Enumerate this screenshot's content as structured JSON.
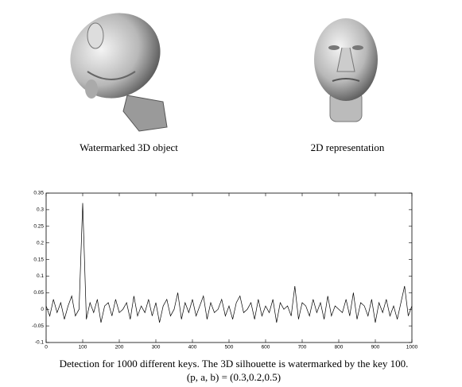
{
  "images": [
    {
      "caption": "Watermarked 3D object"
    },
    {
      "caption": "2D representation"
    }
  ],
  "caption": [
    "Detection for 1000 different keys. The 3D silhouette is watermarked by the key 100.",
    "(p, a, b) = (0.3,0.2,0.5)"
  ],
  "chart_data": {
    "type": "line",
    "color": "#000000",
    "x": [
      0,
      10,
      20,
      30,
      40,
      50,
      60,
      70,
      80,
      90,
      100,
      110,
      120,
      130,
      140,
      150,
      160,
      170,
      180,
      190,
      200,
      210,
      220,
      230,
      240,
      250,
      260,
      270,
      280,
      290,
      300,
      310,
      320,
      330,
      340,
      350,
      360,
      370,
      380,
      390,
      400,
      410,
      420,
      430,
      440,
      450,
      460,
      470,
      480,
      490,
      500,
      510,
      520,
      530,
      540,
      550,
      560,
      570,
      580,
      590,
      600,
      610,
      620,
      630,
      640,
      650,
      660,
      670,
      680,
      690,
      700,
      710,
      720,
      730,
      740,
      750,
      760,
      770,
      780,
      790,
      800,
      810,
      820,
      830,
      840,
      850,
      860,
      870,
      880,
      890,
      900,
      910,
      920,
      930,
      940,
      950,
      960,
      970,
      980,
      990,
      1000
    ],
    "values": [
      0.01,
      -0.02,
      0.03,
      -0.01,
      0.02,
      -0.03,
      0.01,
      0.04,
      -0.02,
      0.0,
      0.32,
      -0.03,
      0.02,
      -0.01,
      0.03,
      -0.04,
      0.01,
      0.02,
      -0.02,
      0.03,
      -0.01,
      0.0,
      0.02,
      -0.03,
      0.04,
      -0.02,
      0.01,
      -0.01,
      0.03,
      -0.02,
      0.02,
      -0.04,
      0.01,
      0.03,
      -0.02,
      0.0,
      0.05,
      -0.03,
      0.02,
      -0.01,
      0.03,
      -0.02,
      0.01,
      0.04,
      -0.03,
      0.02,
      -0.01,
      0.0,
      0.03,
      -0.02,
      0.01,
      -0.03,
      0.02,
      0.04,
      -0.01,
      0.0,
      0.02,
      -0.03,
      0.03,
      -0.02,
      0.01,
      -0.01,
      0.03,
      -0.04,
      0.02,
      0.0,
      0.01,
      -0.02,
      0.07,
      -0.03,
      0.02,
      0.01,
      -0.02,
      0.03,
      -0.01,
      0.02,
      -0.03,
      0.04,
      -0.02,
      0.01,
      0.0,
      -0.01,
      0.03,
      -0.02,
      0.05,
      -0.03,
      0.02,
      0.01,
      -0.02,
      0.03,
      -0.04,
      0.02,
      -0.01,
      0.03,
      -0.02,
      0.01,
      -0.03,
      0.02,
      0.07,
      -0.02,
      0.01
    ],
    "xlim": [
      0,
      1000
    ],
    "ylim": [
      -0.1,
      0.35
    ],
    "xticks": [
      0,
      100,
      200,
      300,
      400,
      500,
      600,
      700,
      800,
      900,
      1000
    ],
    "yticks": [
      -0.1,
      -0.05,
      0,
      0.05,
      0.1,
      0.15,
      0.2,
      0.25,
      0.3,
      0.35
    ]
  }
}
